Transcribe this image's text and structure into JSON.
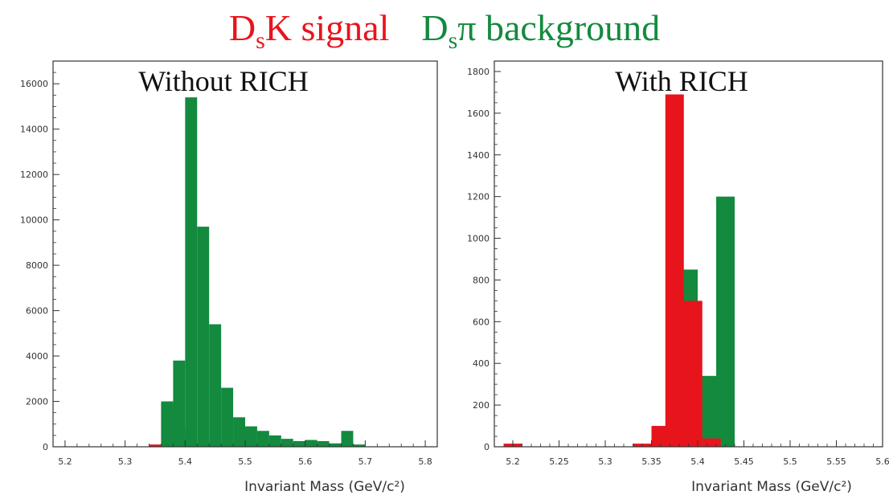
{
  "header": {
    "signal_label": "D",
    "signal_sub": "s",
    "signal_rest": "K signal",
    "background_label": "D",
    "background_sub": "s",
    "background_rest": "π background",
    "signal_color": "#e8141c",
    "background_color": "#138a3e"
  },
  "chart_data": [
    {
      "type": "bar",
      "title": "Without RICH",
      "xlabel": "Invariant Mass (GeV/c²)",
      "ylabel": "",
      "xlim": [
        5.18,
        5.82
      ],
      "ylim": [
        0,
        17000
      ],
      "x_ticks": [
        "5.2",
        "5.3",
        "5.4",
        "5.5",
        "5.6",
        "5.7",
        "5.8"
      ],
      "y_ticks": [
        "0",
        "2000",
        "4000",
        "6000",
        "8000",
        "10000",
        "12000",
        "14000",
        "16000"
      ],
      "y_tick_values": [
        0,
        2000,
        4000,
        6000,
        8000,
        10000,
        12000,
        14000,
        16000
      ],
      "x_tick_values": [
        5.2,
        5.3,
        5.4,
        5.5,
        5.6,
        5.7,
        5.8
      ],
      "bin_width": 0.02,
      "series": [
        {
          "color": "#e8141c",
          "bins": [
            {
              "x": 5.34,
              "value": 100
            },
            {
              "x": 5.36,
              "value": 1900
            },
            {
              "x": 5.38,
              "value": 800
            },
            {
              "x": 5.4,
              "value": 100
            }
          ]
        },
        {
          "color": "#138a3e",
          "bins": [
            {
              "x": 5.36,
              "value": 2000
            },
            {
              "x": 5.38,
              "value": 3800
            },
            {
              "x": 5.4,
              "value": 15400
            },
            {
              "x": 5.42,
              "value": 9700
            },
            {
              "x": 5.44,
              "value": 5400
            },
            {
              "x": 5.46,
              "value": 2600
            },
            {
              "x": 5.48,
              "value": 1300
            },
            {
              "x": 5.5,
              "value": 900
            },
            {
              "x": 5.52,
              "value": 700
            },
            {
              "x": 5.54,
              "value": 500
            },
            {
              "x": 5.56,
              "value": 350
            },
            {
              "x": 5.58,
              "value": 250
            },
            {
              "x": 5.6,
              "value": 300
            },
            {
              "x": 5.62,
              "value": 250
            },
            {
              "x": 5.64,
              "value": 150
            },
            {
              "x": 5.66,
              "value": 700
            },
            {
              "x": 5.68,
              "value": 100
            }
          ]
        }
      ]
    },
    {
      "type": "bar",
      "title": "With RICH",
      "xlabel": "Invariant Mass (GeV/c²)",
      "ylabel": "",
      "xlim": [
        5.18,
        5.6
      ],
      "ylim": [
        0,
        1850
      ],
      "x_ticks": [
        "5.2",
        "5.25",
        "5.3",
        "5.35",
        "5.4",
        "5.45",
        "5.5",
        "5.55",
        "5.6"
      ],
      "x_tick_values": [
        5.2,
        5.25,
        5.3,
        5.35,
        5.4,
        5.45,
        5.5,
        5.55,
        5.6
      ],
      "y_ticks": [
        "0",
        "200",
        "400",
        "600",
        "800",
        "1000",
        "1200",
        "1400",
        "1600",
        "1800"
      ],
      "y_tick_values": [
        0,
        200,
        400,
        600,
        800,
        1000,
        1200,
        1400,
        1600,
        1800
      ],
      "bin_width": 0.02,
      "series": [
        {
          "color": "#138a3e",
          "bins": [
            {
              "x": 5.38,
              "value": 850
            },
            {
              "x": 5.4,
              "value": 340
            },
            {
              "x": 5.42,
              "value": 1200
            }
          ]
        },
        {
          "color": "#e8141c",
          "bins": [
            {
              "x": 5.19,
              "value": 15
            },
            {
              "x": 5.33,
              "value": 15
            },
            {
              "x": 5.35,
              "value": 100
            },
            {
              "x": 5.365,
              "value": 1690
            },
            {
              "x": 5.385,
              "value": 700
            },
            {
              "x": 5.405,
              "value": 40
            }
          ]
        }
      ]
    }
  ]
}
